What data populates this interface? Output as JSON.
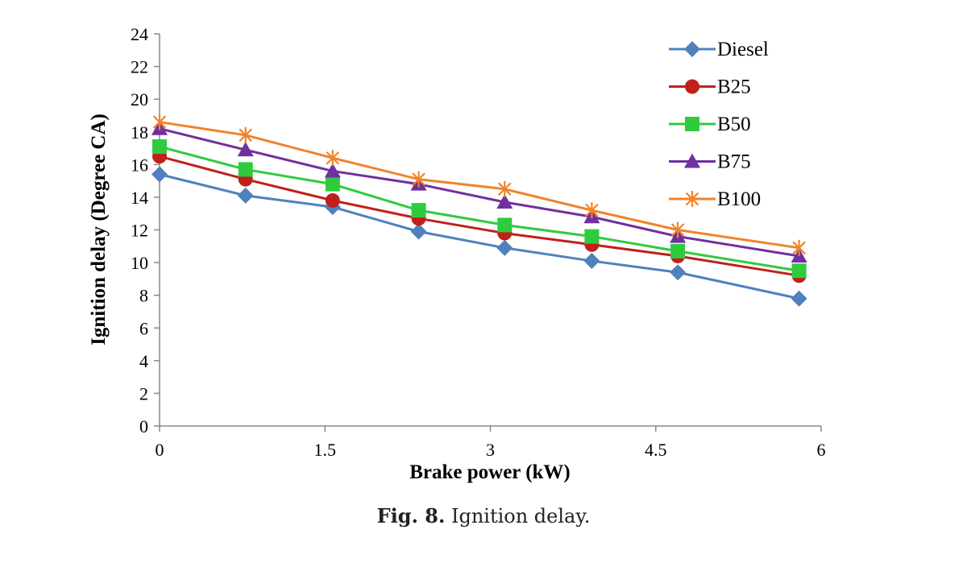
{
  "chart_data": {
    "type": "line",
    "title": "",
    "xlabel": "Brake power (kW)",
    "ylabel": "Ignition delay (Degree CA)",
    "xlim": [
      0,
      6
    ],
    "ylim": [
      0,
      24
    ],
    "xticks": [
      0,
      1.5,
      3,
      4.5,
      6
    ],
    "xtick_labels": [
      "0",
      "1.5",
      "3",
      "4.5",
      "6"
    ],
    "yticks": [
      0,
      2,
      4,
      6,
      8,
      10,
      12,
      14,
      16,
      18,
      20,
      22,
      24
    ],
    "ytick_labels": [
      "0",
      "2",
      "4",
      "6",
      "8",
      "10",
      "12",
      "14",
      "16",
      "18",
      "20",
      "22",
      "24"
    ],
    "grid": false,
    "legend_position": "top-right",
    "x": [
      0,
      0.78,
      1.57,
      2.35,
      3.13,
      3.92,
      4.7,
      5.8
    ],
    "series": [
      {
        "name": "Diesel",
        "color": "#4F81BD",
        "marker": "diamond",
        "values": [
          15.4,
          14.1,
          13.4,
          11.9,
          10.9,
          10.1,
          9.4,
          7.8
        ]
      },
      {
        "name": "B25",
        "color": "#C0201A",
        "marker": "circle",
        "values": [
          16.5,
          15.1,
          13.8,
          12.7,
          11.8,
          11.1,
          10.4,
          9.2
        ]
      },
      {
        "name": "B50",
        "color": "#2FCB3E",
        "marker": "square",
        "values": [
          17.1,
          15.7,
          14.8,
          13.2,
          12.3,
          11.6,
          10.7,
          9.5
        ]
      },
      {
        "name": "B75",
        "color": "#7030A0",
        "marker": "triangle",
        "values": [
          18.2,
          16.9,
          15.6,
          14.8,
          13.7,
          12.8,
          11.6,
          10.4
        ]
      },
      {
        "name": "B100",
        "color": "#F0832A",
        "marker": "asterisk",
        "values": [
          18.6,
          17.8,
          16.4,
          15.1,
          14.5,
          13.2,
          12.0,
          10.9
        ]
      }
    ]
  },
  "caption": {
    "label": "Fig. 8.",
    "text": "Ignition delay."
  }
}
